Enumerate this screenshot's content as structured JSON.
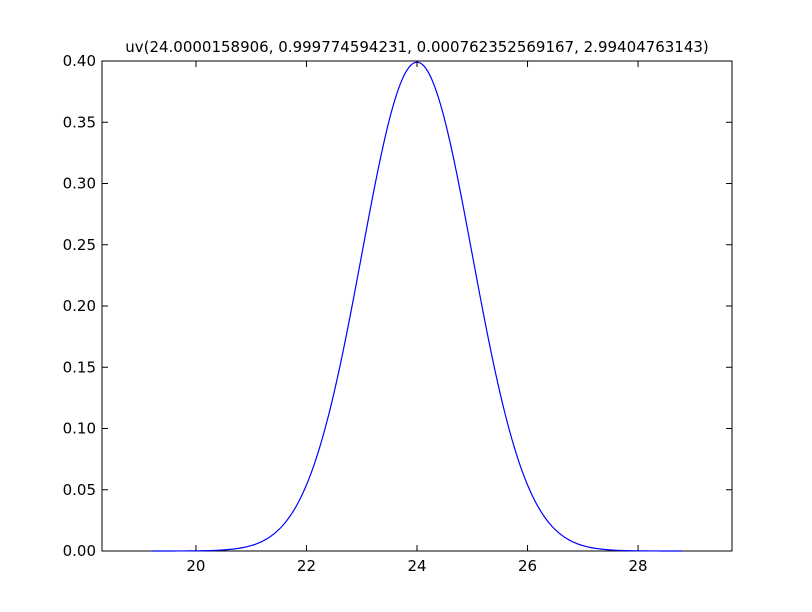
{
  "chart_data": {
    "type": "line",
    "title": "uv(24.0000158906, 0.999774594231, 0.000762352569167, 2.99404763143)",
    "xlabel": "",
    "ylabel": "",
    "xlim": [
      18.3,
      29.7
    ],
    "ylim": [
      0.0,
      0.4
    ],
    "xticks": [
      20,
      22,
      24,
      26,
      28
    ],
    "xtick_labels": [
      "20",
      "22",
      "24",
      "26",
      "28"
    ],
    "yticks": [
      0.0,
      0.05,
      0.1,
      0.15,
      0.2,
      0.25,
      0.3,
      0.35,
      0.4
    ],
    "ytick_labels": [
      "0.00",
      "0.05",
      "0.10",
      "0.15",
      "0.20",
      "0.25",
      "0.30",
      "0.35",
      "0.40"
    ],
    "grid": false,
    "legend": "none",
    "series": [
      {
        "color": "#0000ff",
        "x_start": 19.2,
        "x_end": 28.8,
        "curve": {
          "kind": "gaussian_pdf",
          "mean": 24.0000158906,
          "std": 0.999774594231
        }
      }
    ]
  }
}
